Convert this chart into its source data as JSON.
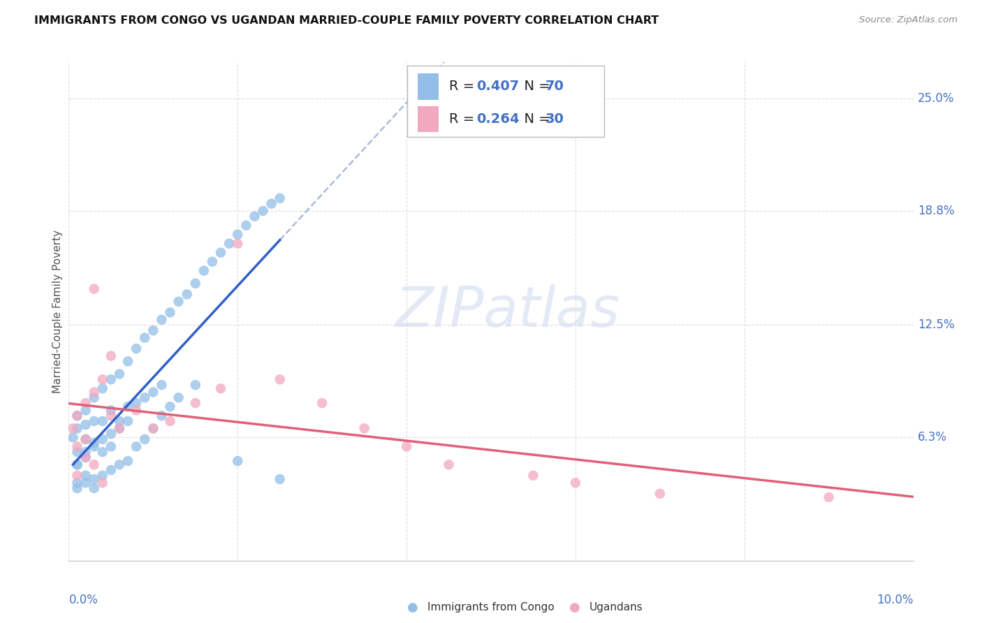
{
  "title": "IMMIGRANTS FROM CONGO VS UGANDAN MARRIED-COUPLE FAMILY POVERTY CORRELATION CHART",
  "source": "Source: ZipAtlas.com",
  "ylabel": "Married-Couple Family Poverty",
  "xlim": [
    0.0,
    0.1
  ],
  "ylim": [
    -0.005,
    0.27
  ],
  "ytick_labels": [
    "25.0%",
    "18.8%",
    "12.5%",
    "6.3%"
  ],
  "ytick_values": [
    0.25,
    0.188,
    0.125,
    0.063
  ],
  "xtick_labels": [
    "0.0%",
    "10.0%"
  ],
  "xtick_values": [
    0.0,
    0.1
  ],
  "legend_r1": "R = 0.407",
  "legend_n1": "N = 70",
  "legend_r2": "R = 0.264",
  "legend_n2": "N = 30",
  "legend_label1": "Immigrants from Congo",
  "legend_label2": "Ugandans",
  "color_blue": "#92BEE8",
  "color_pink": "#F2A8BE",
  "color_blue_line": "#3060C8",
  "color_pink_line": "#E0607A",
  "color_blue_dashed": "#AABBD8",
  "color_label": "#4472C4",
  "color_grid": "#DDDDDD",
  "watermark_color": "#CDD8EE",
  "congo_x": [
    0.0005,
    0.001,
    0.001,
    0.001,
    0.001,
    0.001,
    0.002,
    0.002,
    0.002,
    0.002,
    0.002,
    0.003,
    0.003,
    0.003,
    0.003,
    0.004,
    0.004,
    0.004,
    0.005,
    0.005,
    0.005,
    0.006,
    0.006,
    0.007,
    0.007,
    0.008,
    0.008,
    0.009,
    0.009,
    0.01,
    0.01,
    0.011,
    0.011,
    0.012,
    0.013,
    0.014,
    0.015,
    0.016,
    0.017,
    0.018,
    0.019,
    0.02,
    0.021,
    0.022,
    0.023,
    0.024,
    0.025,
    0.001,
    0.001,
    0.002,
    0.002,
    0.003,
    0.003,
    0.004,
    0.004,
    0.005,
    0.005,
    0.006,
    0.006,
    0.007,
    0.007,
    0.008,
    0.009,
    0.01,
    0.011,
    0.012,
    0.013,
    0.015,
    0.02,
    0.025
  ],
  "congo_y": [
    0.063,
    0.075,
    0.068,
    0.055,
    0.048,
    0.038,
    0.078,
    0.07,
    0.062,
    0.055,
    0.042,
    0.085,
    0.072,
    0.06,
    0.035,
    0.09,
    0.072,
    0.055,
    0.095,
    0.078,
    0.058,
    0.098,
    0.072,
    0.105,
    0.08,
    0.112,
    0.082,
    0.118,
    0.085,
    0.122,
    0.088,
    0.128,
    0.092,
    0.132,
    0.138,
    0.142,
    0.148,
    0.155,
    0.16,
    0.165,
    0.17,
    0.175,
    0.18,
    0.185,
    0.188,
    0.192,
    0.195,
    0.048,
    0.035,
    0.052,
    0.038,
    0.058,
    0.04,
    0.062,
    0.042,
    0.065,
    0.045,
    0.068,
    0.048,
    0.072,
    0.05,
    0.058,
    0.062,
    0.068,
    0.075,
    0.08,
    0.085,
    0.092,
    0.05,
    0.04
  ],
  "uganda_x": [
    0.0005,
    0.001,
    0.001,
    0.002,
    0.002,
    0.003,
    0.003,
    0.004,
    0.005,
    0.005,
    0.006,
    0.008,
    0.01,
    0.012,
    0.015,
    0.018,
    0.02,
    0.025,
    0.03,
    0.035,
    0.04,
    0.045,
    0.055,
    0.06,
    0.07,
    0.09,
    0.001,
    0.002,
    0.003,
    0.004
  ],
  "uganda_y": [
    0.068,
    0.075,
    0.058,
    0.082,
    0.062,
    0.145,
    0.088,
    0.095,
    0.108,
    0.075,
    0.068,
    0.078,
    0.068,
    0.072,
    0.082,
    0.09,
    0.17,
    0.095,
    0.082,
    0.068,
    0.058,
    0.048,
    0.042,
    0.038,
    0.032,
    0.03,
    0.042,
    0.052,
    0.048,
    0.038
  ]
}
